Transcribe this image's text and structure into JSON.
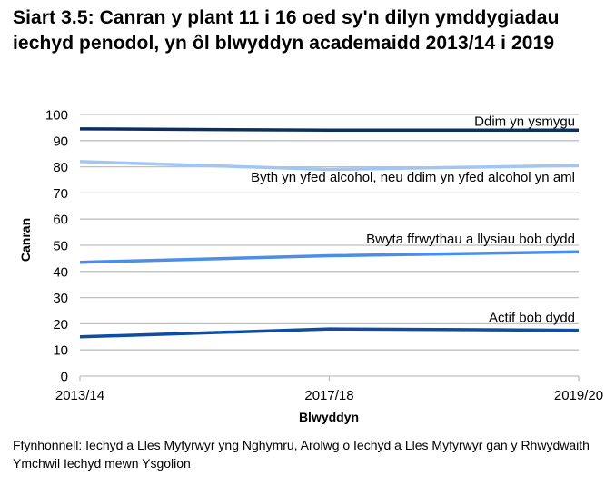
{
  "title": "Siart 3.5: Canran y plant 11 i 16 oed sy'n dilyn ymddygiadau iechyd penodol, yn ôl blwyddyn academaidd 2013/14 i 2019",
  "source": "Ffynhonnell: Iechyd a Lles Myfyrwyr yng Nghymru, Arolwg o Iechyd a Lles Myfyrwyr gan y Rhwydwaith Ymchwil Iechyd mewn Ysgolion",
  "colors": {
    "ddim_ysmygu": "#0c2f63",
    "byth_yfed": "#a2c6f4",
    "ffrwythau": "#4a8ee8",
    "actif": "#0d4da3",
    "grid": "#bfbfbf"
  },
  "chart_data": {
    "type": "line",
    "title": "Siart 3.5: Canran y plant 11 i 16 oed sy'n dilyn ymddygiadau iechyd penodol, yn ôl blwyddyn academaidd 2013/14 i 2019",
    "xlabel": "Blwyddyn",
    "ylabel": "Canran",
    "categories": [
      "2013/14",
      "2017/18",
      "2019/20"
    ],
    "ylim": [
      0,
      100
    ],
    "yticks": [
      0,
      10,
      20,
      30,
      40,
      50,
      60,
      70,
      80,
      90,
      100
    ],
    "grid": true,
    "legend": "inline labels at right end of each line",
    "series": [
      {
        "name": "Ddim yn ysmygu",
        "values": [
          94.5,
          94,
          94
        ],
        "color": "#0c2f63"
      },
      {
        "name": "Byth yn yfed alcohol, neu ddim yn yfed alcohol yn aml",
        "values": [
          82,
          79,
          80.5
        ],
        "color": "#a2c6f4"
      },
      {
        "name": "Bwyta ffrwythau a llysiau bob dydd",
        "values": [
          43.5,
          46,
          47.5
        ],
        "color": "#4a8ee8"
      },
      {
        "name": "Actif bob dydd",
        "values": [
          15,
          18,
          17.5
        ],
        "color": "#0d4da3"
      }
    ]
  }
}
